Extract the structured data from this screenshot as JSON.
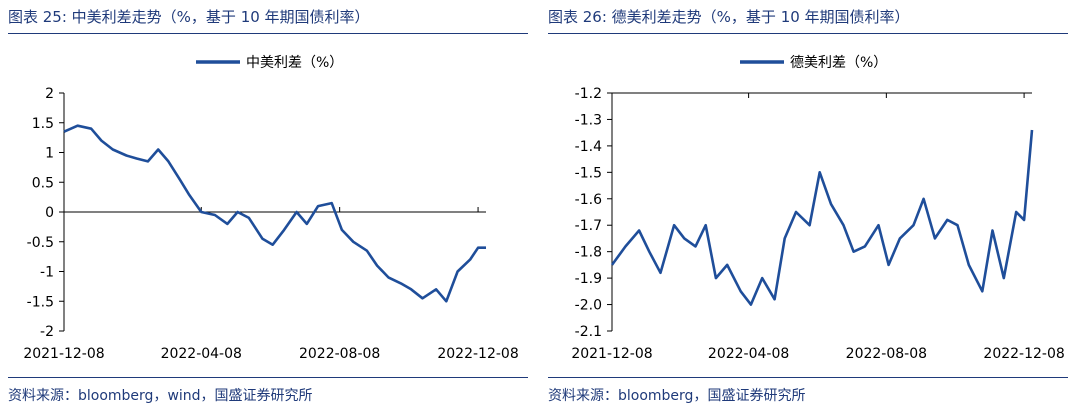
{
  "charts": [
    {
      "title": "图表 25:  中美利差走势（%，基于 10 年期国债利率）",
      "source": "资料来源：bloomberg，wind，国盛证券研究所",
      "line_color": "#1f4e9a"
    },
    {
      "title": "图表 26:  德美利差走势（%，基于 10 年期国债利率）",
      "source": "资料来源：bloomberg，国盛证券研究所",
      "line_color": "#1f4e9a"
    }
  ],
  "chart_data": [
    {
      "type": "line",
      "legend": "中美利差（%）",
      "legend_position": "top-center",
      "grid": false,
      "x_ticks": [
        "2021-12-08",
        "2022-04-08",
        "2022-08-08",
        "2022-12-08"
      ],
      "x": [
        "2021-12-08",
        "2021-12-20",
        "2022-01-01",
        "2022-01-10",
        "2022-01-20",
        "2022-02-01",
        "2022-02-10",
        "2022-02-20",
        "2022-03-01",
        "2022-03-10",
        "2022-03-20",
        "2022-03-28",
        "2022-04-08",
        "2022-04-20",
        "2022-05-01",
        "2022-05-10",
        "2022-05-20",
        "2022-06-01",
        "2022-06-10",
        "2022-06-20",
        "2022-07-01",
        "2022-07-10",
        "2022-07-20",
        "2022-08-01",
        "2022-08-10",
        "2022-08-20",
        "2022-09-01",
        "2022-09-10",
        "2022-09-20",
        "2022-10-01",
        "2022-10-10",
        "2022-10-20",
        "2022-11-01",
        "2022-11-10",
        "2022-11-20",
        "2022-12-01",
        "2022-12-08",
        "2022-12-15"
      ],
      "values": [
        1.35,
        1.45,
        1.4,
        1.2,
        1.05,
        0.95,
        0.9,
        0.85,
        1.05,
        0.85,
        0.55,
        0.3,
        0.0,
        -0.05,
        -0.2,
        0.0,
        -0.1,
        -0.45,
        -0.55,
        -0.3,
        0.0,
        -0.2,
        0.1,
        0.15,
        -0.3,
        -0.5,
        -0.65,
        -0.9,
        -1.1,
        -1.2,
        -1.3,
        -1.45,
        -1.3,
        -1.5,
        -1.0,
        -0.8,
        -0.6,
        -0.6
      ],
      "ylim": [
        -2,
        2
      ],
      "y_ticks": [
        -2,
        -1.5,
        -1,
        -0.5,
        0,
        0.5,
        1,
        1.5,
        2
      ]
    },
    {
      "type": "line",
      "legend": "德美利差（%）",
      "legend_position": "top-center",
      "grid": false,
      "x_ticks": [
        "2021-12-08",
        "2022-04-08",
        "2022-08-08",
        "2022-12-08"
      ],
      "x": [
        "2021-12-08",
        "2021-12-20",
        "2022-01-01",
        "2022-01-10",
        "2022-01-20",
        "2022-02-01",
        "2022-02-10",
        "2022-02-20",
        "2022-03-01",
        "2022-03-10",
        "2022-03-20",
        "2022-04-01",
        "2022-04-10",
        "2022-04-20",
        "2022-05-01",
        "2022-05-10",
        "2022-05-20",
        "2022-06-01",
        "2022-06-10",
        "2022-06-20",
        "2022-07-01",
        "2022-07-10",
        "2022-07-20",
        "2022-08-01",
        "2022-08-10",
        "2022-08-20",
        "2022-09-01",
        "2022-09-10",
        "2022-09-20",
        "2022-10-01",
        "2022-10-10",
        "2022-10-20",
        "2022-11-01",
        "2022-11-10",
        "2022-11-20",
        "2022-12-01",
        "2022-12-08",
        "2022-12-15"
      ],
      "values": [
        -1.85,
        -1.78,
        -1.72,
        -1.8,
        -1.88,
        -1.7,
        -1.75,
        -1.78,
        -1.7,
        -1.9,
        -1.85,
        -1.95,
        -2.0,
        -1.9,
        -1.98,
        -1.75,
        -1.65,
        -1.7,
        -1.5,
        -1.62,
        -1.7,
        -1.8,
        -1.78,
        -1.7,
        -1.85,
        -1.75,
        -1.7,
        -1.6,
        -1.75,
        -1.68,
        -1.7,
        -1.85,
        -1.95,
        -1.72,
        -1.9,
        -1.65,
        -1.68,
        -1.34
      ],
      "ylim": [
        -2.1,
        -1.2
      ],
      "y_ticks": [
        -2.1,
        -2.0,
        -1.9,
        -1.8,
        -1.7,
        -1.6,
        -1.5,
        -1.4,
        -1.3,
        -1.2
      ]
    }
  ]
}
